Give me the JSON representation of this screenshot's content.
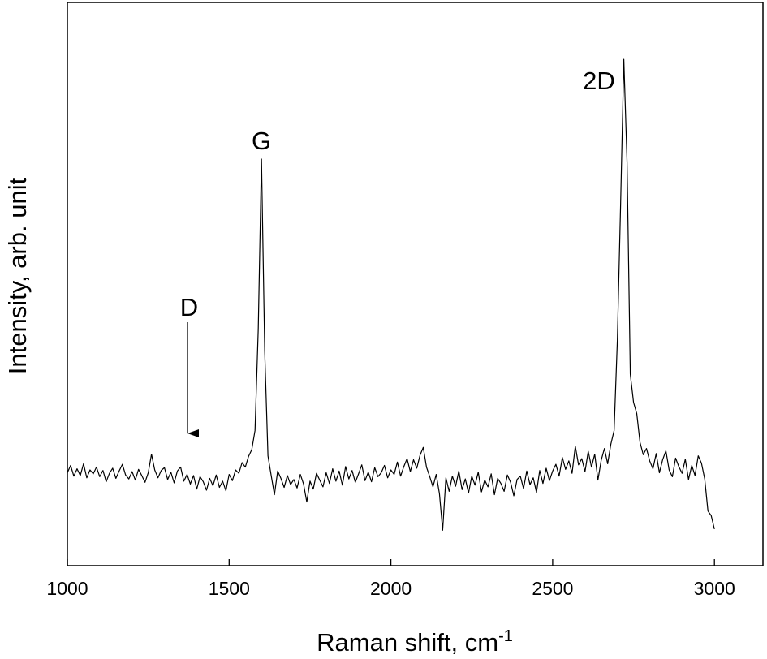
{
  "chart_data": {
    "type": "line",
    "x_label": "Raman shift, cm",
    "x_label_sup": "-1",
    "y_label": "Intensity, arb. unit",
    "annotations": [
      "D",
      "G",
      "2D"
    ],
    "xlim": [
      1000,
      3150
    ],
    "ylim": [
      0,
      100
    ],
    "xticks": [
      1000,
      1500,
      2000,
      2500,
      3000
    ],
    "color": "#000000",
    "x": [
      1000,
      1010,
      1020,
      1030,
      1040,
      1050,
      1060,
      1070,
      1080,
      1090,
      1100,
      1110,
      1120,
      1130,
      1140,
      1150,
      1160,
      1170,
      1180,
      1190,
      1200,
      1210,
      1220,
      1230,
      1240,
      1250,
      1260,
      1270,
      1280,
      1290,
      1300,
      1310,
      1320,
      1330,
      1340,
      1350,
      1360,
      1370,
      1380,
      1390,
      1400,
      1410,
      1420,
      1430,
      1440,
      1450,
      1460,
      1470,
      1480,
      1490,
      1500,
      1510,
      1520,
      1530,
      1540,
      1550,
      1560,
      1570,
      1580,
      1590,
      1600,
      1610,
      1620,
      1630,
      1640,
      1650,
      1660,
      1670,
      1680,
      1690,
      1700,
      1710,
      1720,
      1730,
      1740,
      1750,
      1760,
      1770,
      1780,
      1790,
      1800,
      1810,
      1820,
      1830,
      1840,
      1850,
      1860,
      1870,
      1880,
      1890,
      1900,
      1910,
      1920,
      1930,
      1940,
      1950,
      1960,
      1970,
      1980,
      1990,
      2000,
      2010,
      2020,
      2030,
      2040,
      2050,
      2060,
      2070,
      2080,
      2090,
      2100,
      2110,
      2120,
      2130,
      2140,
      2150,
      2160,
      2170,
      2180,
      2190,
      2200,
      2210,
      2220,
      2230,
      2240,
      2250,
      2260,
      2270,
      2280,
      2290,
      2300,
      2310,
      2320,
      2330,
      2340,
      2350,
      2360,
      2370,
      2380,
      2390,
      2400,
      2410,
      2420,
      2430,
      2440,
      2450,
      2460,
      2470,
      2480,
      2490,
      2500,
      2510,
      2520,
      2530,
      2540,
      2550,
      2560,
      2570,
      2580,
      2590,
      2600,
      2610,
      2620,
      2630,
      2640,
      2650,
      2660,
      2670,
      2680,
      2690,
      2700,
      2710,
      2720,
      2730,
      2740,
      2750,
      2760,
      2770,
      2780,
      2790,
      2800,
      2810,
      2820,
      2830,
      2840,
      2850,
      2860,
      2870,
      2880,
      2890,
      2900,
      2910,
      2920,
      2930,
      2940,
      2950,
      2960,
      2970,
      2980,
      2990,
      3000
    ],
    "values": [
      16.5,
      17.8,
      15.9,
      17.2,
      16.0,
      18.1,
      15.6,
      17.0,
      16.3,
      17.5,
      15.8,
      16.9,
      14.9,
      16.4,
      17.3,
      15.5,
      16.8,
      18.0,
      16.1,
      15.4,
      16.7,
      15.2,
      17.1,
      16.0,
      14.8,
      16.5,
      19.8,
      17.0,
      15.6,
      16.9,
      17.4,
      15.3,
      16.6,
      14.7,
      16.8,
      17.5,
      15.0,
      16.2,
      14.5,
      16.0,
      13.6,
      15.8,
      14.9,
      13.4,
      15.5,
      14.2,
      16.1,
      13.9,
      15.0,
      13.3,
      16.2,
      15.1,
      17.0,
      16.4,
      18.3,
      17.5,
      19.4,
      20.6,
      24.0,
      42.0,
      72.2,
      38.0,
      19.5,
      16.0,
      12.6,
      16.8,
      15.5,
      13.9,
      16.0,
      14.4,
      15.3,
      13.8,
      16.2,
      14.5,
      11.3,
      15.0,
      13.6,
      16.4,
      15.2,
      14.0,
      16.5,
      14.6,
      17.2,
      15.0,
      16.8,
      14.3,
      17.6,
      15.4,
      16.9,
      14.8,
      16.3,
      17.9,
      15.1,
      16.6,
      14.9,
      17.4,
      15.8,
      16.5,
      17.8,
      15.6,
      17.0,
      16.2,
      18.4,
      15.9,
      17.6,
      19.0,
      16.7,
      18.8,
      17.3,
      19.6,
      21.0,
      17.5,
      15.8,
      14.0,
      16.2,
      12.8,
      6.3,
      15.6,
      13.2,
      15.9,
      14.1,
      16.8,
      13.5,
      15.4,
      12.9,
      15.9,
      14.3,
      16.6,
      13.1,
      15.2,
      14.0,
      16.3,
      12.6,
      15.5,
      14.6,
      13.2,
      16.1,
      14.8,
      12.4,
      15.3,
      15.9,
      13.7,
      16.8,
      14.4,
      15.6,
      13.0,
      16.9,
      14.6,
      17.3,
      15.1,
      16.8,
      18.0,
      15.9,
      19.2,
      17.1,
      18.6,
      16.4,
      21.2,
      17.9,
      19.0,
      16.7,
      20.3,
      17.5,
      19.8,
      15.2,
      18.7,
      20.8,
      18.1,
      21.6,
      24.0,
      40.0,
      64.0,
      89.9,
      71.6,
      34.0,
      29.0,
      27.0,
      21.9,
      19.7,
      20.8,
      18.6,
      17.2,
      19.9,
      16.5,
      18.8,
      20.4,
      17.0,
      15.8,
      19.1,
      17.6,
      16.4,
      18.9,
      15.3,
      17.8,
      16.0,
      19.5,
      18.2,
      15.4,
      9.7,
      8.9,
      6.5
    ]
  }
}
